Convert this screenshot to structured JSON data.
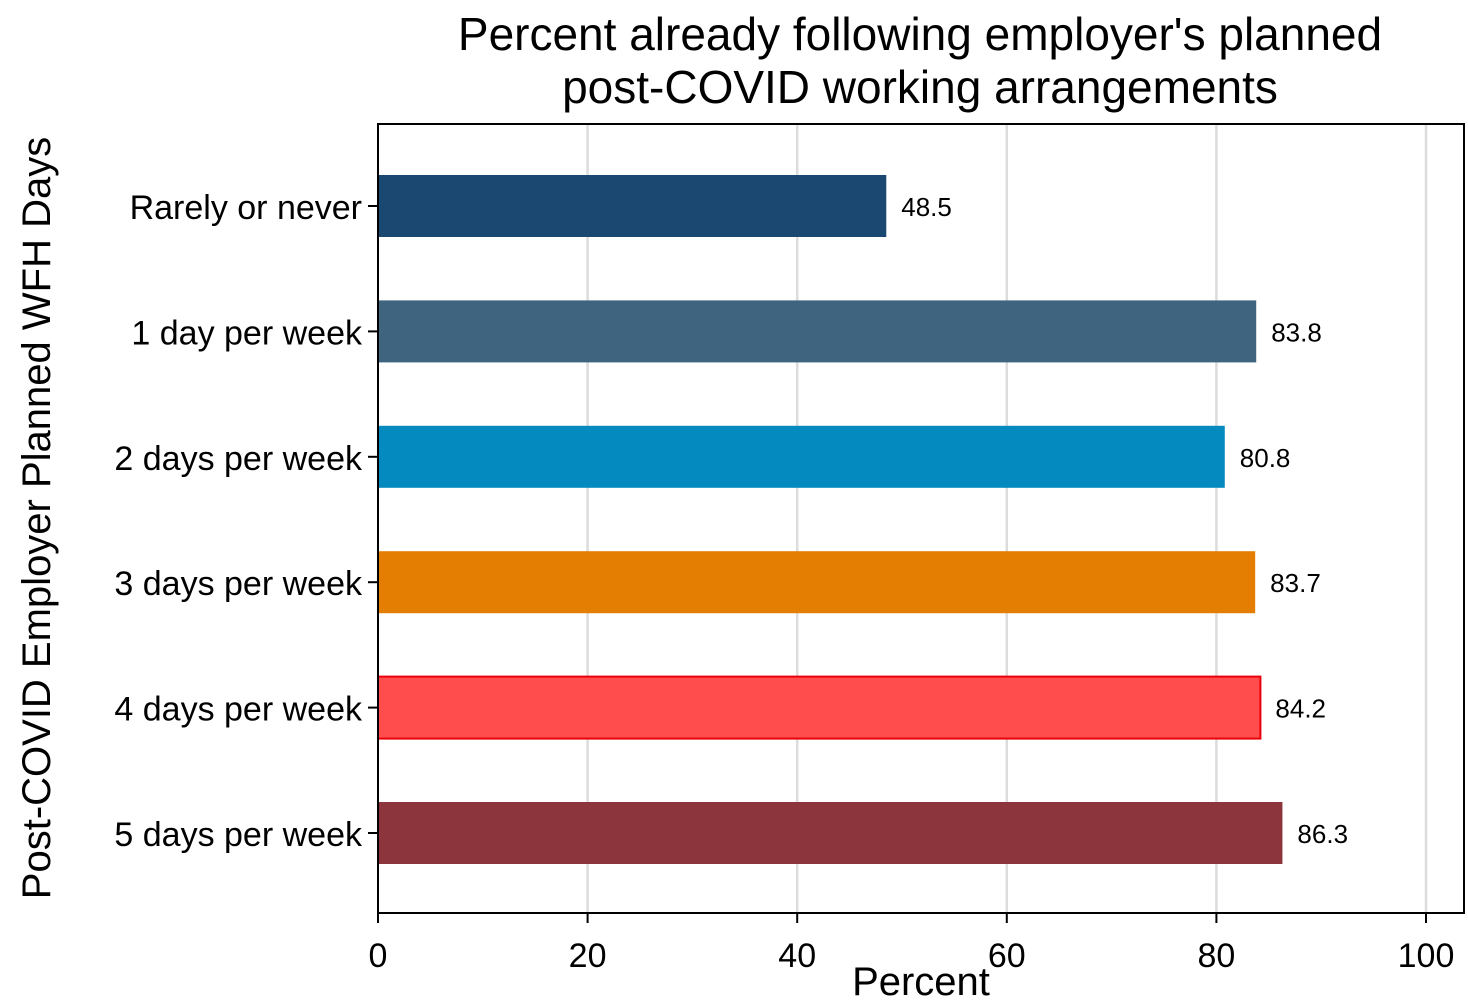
{
  "chart_data": {
    "type": "bar",
    "orientation": "horizontal",
    "title_lines": [
      "Percent already following employer's planned",
      "post-COVID working arrangements"
    ],
    "xlabel": "Percent",
    "ylabel": "Post-COVID Employer Planned WFH Days",
    "xlim": [
      0,
      103
    ],
    "xticks": [
      0,
      20,
      40,
      60,
      80,
      100
    ],
    "grid": true,
    "categories": [
      "Rarely or never",
      "1 day per week",
      "2 days per week",
      "3 days per week",
      "4 days per week",
      "5 days per week"
    ],
    "values": [
      48.5,
      83.8,
      80.8,
      83.7,
      84.2,
      86.3
    ],
    "data_labels": [
      "48.5",
      "83.8",
      "80.8",
      "83.7",
      "84.2",
      "86.3"
    ],
    "colors": [
      "#1b4870",
      "#3e647f",
      "#048abf",
      "#e37e03",
      "#ff4d4d",
      "#8c353d"
    ],
    "highlight_border": "#e8000b",
    "highlight_index": 4
  }
}
